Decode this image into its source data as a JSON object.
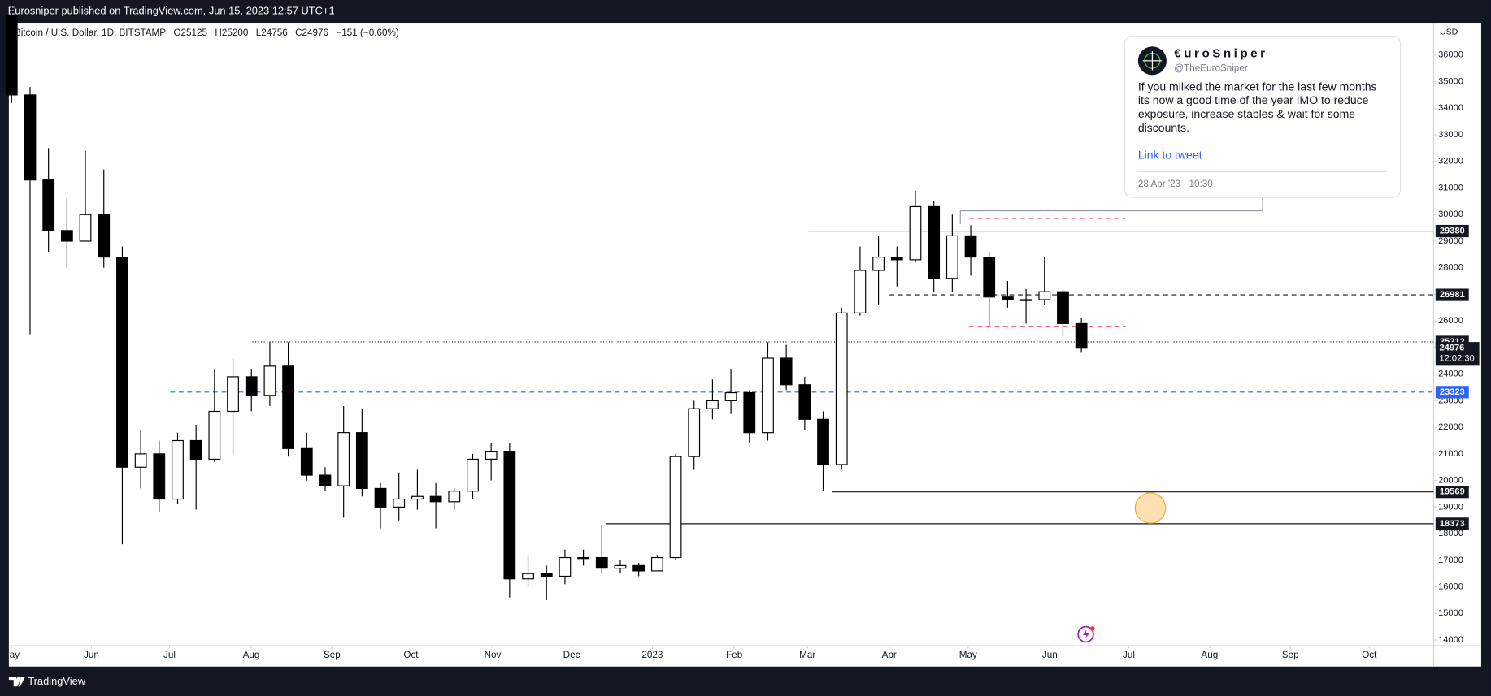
{
  "header": "Eurosniper published on TradingView.com, Jun 15, 2023 12:57 UTC+1",
  "chart_data": {
    "type": "candlestick",
    "legend": {
      "symbol": "Bitcoin / U.S. Dollar, 1D, BITSTAMP",
      "items": [
        {
          "key": "O",
          "value": 25125
        },
        {
          "key": "H",
          "value": 25200
        },
        {
          "key": "L",
          "value": 24756
        },
        {
          "key": "C",
          "value": 24976
        }
      ],
      "change": "−151 (−0.60%)"
    },
    "currency": "USD",
    "open": [
      37500,
      34500,
      31300,
      29400,
      29000,
      30000,
      28400,
      20500,
      21000,
      19300,
      21500,
      20800,
      22600,
      23900,
      23200,
      24300,
      21200,
      20200,
      19800,
      21800,
      19700,
      19000,
      19300,
      19400,
      19200,
      19600,
      20800,
      21100,
      16300,
      16500,
      16400,
      17100,
      17100,
      16700,
      16800,
      16600,
      17100,
      20900,
      22700,
      23000,
      23300,
      21800,
      24600,
      23600,
      22300,
      20600,
      26300,
      27900,
      28400,
      28300,
      30300,
      27600,
      29200,
      28400,
      26900,
      26800,
      26800,
      27100,
      25900
    ],
    "high": [
      38600,
      34800,
      32500,
      30600,
      32400,
      31700,
      28800,
      21900,
      21500,
      21800,
      22100,
      24200,
      24600,
      24200,
      25200,
      25200,
      21800,
      20500,
      22800,
      22700,
      19900,
      20300,
      20400,
      19900,
      19700,
      21000,
      21400,
      21400,
      17200,
      16800,
      17400,
      17400,
      18300,
      17000,
      16900,
      17200,
      21000,
      23000,
      23800,
      24200,
      23400,
      25200,
      25100,
      23900,
      22600,
      26500,
      28800,
      29200,
      28800,
      30900,
      30500,
      30000,
      29600,
      28600,
      27500,
      27200,
      28400,
      27200,
      26100
    ],
    "low": [
      34200,
      25500,
      28600,
      28000,
      29100,
      28000,
      17600,
      19700,
      18800,
      19100,
      18900,
      20700,
      21000,
      22600,
      22800,
      20900,
      20000,
      19600,
      18600,
      19400,
      18200,
      18500,
      18900,
      18200,
      18900,
      19300,
      20000,
      15600,
      16000,
      15500,
      16100,
      16800,
      16500,
      16500,
      16400,
      16600,
      17000,
      20400,
      22300,
      22500,
      21400,
      21500,
      23400,
      21900,
      19600,
      20400,
      26200,
      26600,
      27300,
      28200,
      27100,
      27100,
      27700,
      25800,
      26500,
      25900,
      26600,
      25400,
      24800
    ],
    "close": [
      34500,
      31300,
      29400,
      29000,
      30000,
      28400,
      20500,
      21000,
      19300,
      21500,
      20800,
      22600,
      23900,
      23200,
      24300,
      21200,
      20200,
      19800,
      21800,
      19700,
      19000,
      19300,
      19400,
      19200,
      19600,
      20800,
      21100,
      16300,
      16500,
      16400,
      17100,
      17100,
      16700,
      16800,
      16600,
      17100,
      20900,
      22700,
      23000,
      23300,
      21800,
      24600,
      23600,
      22300,
      20600,
      26300,
      27900,
      28400,
      28300,
      30300,
      27600,
      29200,
      28400,
      26900,
      26800,
      26800,
      27100,
      25900,
      24976
    ],
    "up_color": "#ffffff",
    "down_color": "#000000",
    "xlim": [
      -0.15,
      77.1
    ],
    "xticks": [
      {
        "value": 0,
        "label": "ay"
      },
      {
        "value": 4.33,
        "label": "Jun"
      },
      {
        "value": 8.56,
        "label": "Jul"
      },
      {
        "value": 12.99,
        "label": "Aug"
      },
      {
        "value": 17.37,
        "label": "Sep"
      },
      {
        "value": 21.65,
        "label": "Oct"
      },
      {
        "value": 26.08,
        "label": "Nov"
      },
      {
        "value": 30.36,
        "label": "Dec"
      },
      {
        "value": 34.74,
        "label": "2023"
      },
      {
        "value": 39.18,
        "label": "Feb"
      },
      {
        "value": 43.15,
        "label": "Mar"
      },
      {
        "value": 47.58,
        "label": "Apr"
      },
      {
        "value": 51.86,
        "label": "May"
      },
      {
        "value": 56.29,
        "label": "Jun"
      },
      {
        "value": 60.57,
        "label": "Jul"
      },
      {
        "value": 64.95,
        "label": "Aug"
      },
      {
        "value": 69.33,
        "label": "Sep"
      },
      {
        "value": 73.61,
        "label": "Oct"
      }
    ],
    "ylim": [
      13786,
      37214
    ],
    "yticks": [
      14000,
      15000,
      16000,
      17000,
      18000,
      19000,
      20000,
      21000,
      22000,
      23000,
      24000,
      25000,
      26000,
      27000,
      28000,
      29000,
      30000,
      31000,
      32000,
      33000,
      34000,
      35000,
      36000
    ],
    "levels": [
      {
        "value": 29380,
        "color": "#131722",
        "style": "solid",
        "start": 43.2,
        "labeled": true
      },
      {
        "value": 26981,
        "color": "#131722",
        "style": "dashed",
        "start": 47.6,
        "labeled": true
      },
      {
        "value": 25212,
        "color": "#131722",
        "style": "dotted",
        "start": 12.9,
        "labeled": true
      },
      {
        "value": 23323,
        "color": "#2962ff",
        "style": "dashed",
        "start": 8.6,
        "labeled": true
      },
      {
        "value": 19569,
        "color": "#131722",
        "style": "solid",
        "start": 44.5,
        "labeled": true
      },
      {
        "value": 18373,
        "color": "#131722",
        "style": "solid",
        "start": 32.2,
        "labeled": true
      },
      {
        "value": 29857,
        "color": "#f23645",
        "style": "dashed",
        "start": 51.9,
        "end": 60.4,
        "labeled": false
      },
      {
        "value": 25786,
        "color": "#f23645",
        "style": "dashed",
        "start": 51.9,
        "end": 60.4,
        "labeled": false
      }
    ],
    "countdown": "12:02:30"
  },
  "tweet": {
    "name": "€uroSniper",
    "handle": "@TheEuroSniper",
    "body": [
      "If you milked the market for the last few months",
      "its now a good time of the year IMO to reduce",
      "exposure, increase stables & wait for some",
      "discounts."
    ],
    "link": "Link to tweet",
    "date": "28 Apr '23 · 10:30"
  },
  "footer": "TradingView"
}
